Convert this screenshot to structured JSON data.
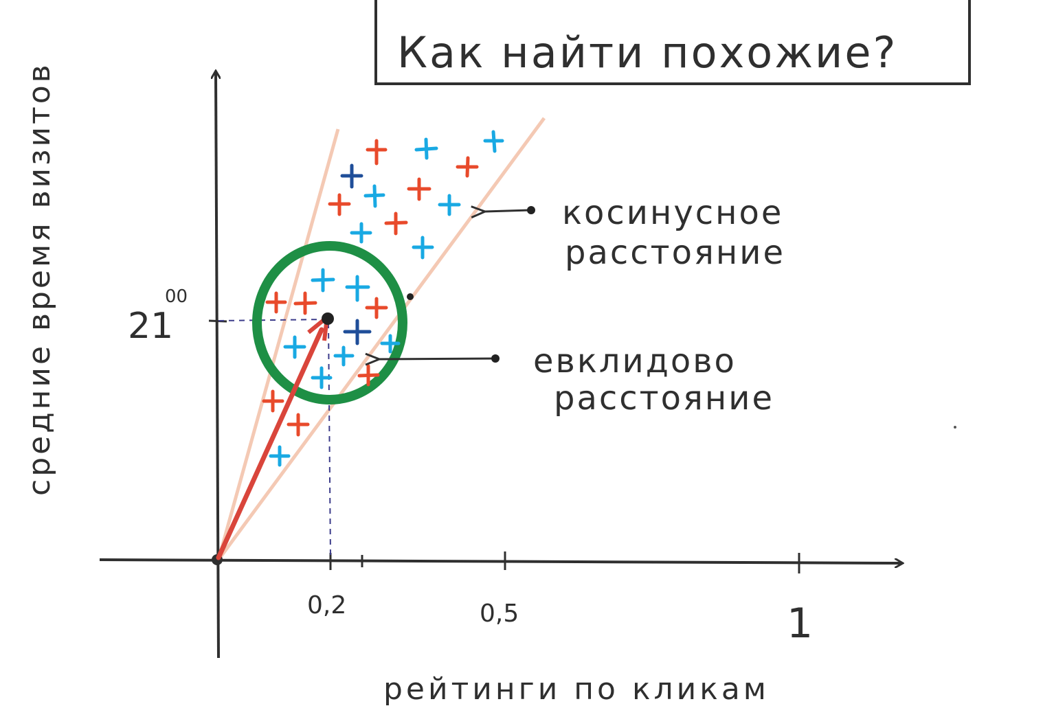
{
  "title": "Как найти похожие?",
  "y_axis_label": "средние время визитов",
  "x_axis_label": "рейтинги по кликам",
  "x_ticks": [
    "0,2",
    "0,5",
    "1"
  ],
  "y_tick": {
    "base": "21",
    "superscript": "00"
  },
  "annotations": {
    "cosine": [
      "косинусное",
      "расстояние"
    ],
    "euclid": [
      "евклидово",
      "расстояние"
    ]
  },
  "colors": {
    "ink": "#2f2f2f",
    "circle": "#1e8f45",
    "vector": "#d9453b",
    "cone": "#f4c9b4",
    "plus_red": "#e84a2b",
    "plus_blue": "#19a9e3",
    "plus_navy": "#1f4e99"
  }
}
